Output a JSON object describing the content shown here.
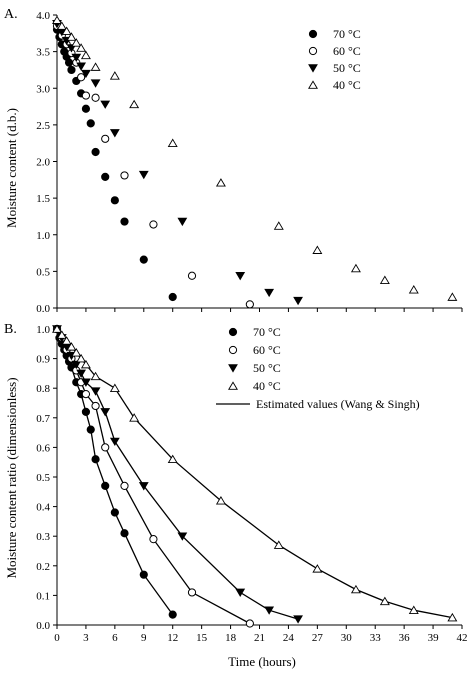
{
  "chart_data": [
    {
      "type": "scatter",
      "panel_label": "A.",
      "ylabel": "Moisture content (d.b.)",
      "xlabel": "",
      "xlim": [
        0,
        42
      ],
      "ylim": [
        0,
        4.0
      ],
      "x_ticks": [
        0,
        3,
        6,
        9,
        12,
        15,
        18,
        21,
        24,
        27,
        30,
        33,
        36,
        39,
        42
      ],
      "x_tick_labels_shown": false,
      "y_ticks": [
        0,
        0.5,
        1.0,
        1.5,
        2.0,
        2.5,
        3.0,
        3.5,
        4.0
      ],
      "y_tick_labels": [
        "0.0",
        "0.5",
        "1.0",
        "1.5",
        "2.0",
        "2.5",
        "3.0",
        "3.5",
        "4.0"
      ],
      "grid": false,
      "legend_position": "top-right",
      "series": [
        {
          "name": "70 °C",
          "marker": "filled-circle",
          "x": [
            0,
            0.25,
            0.5,
            0.75,
            1,
            1.25,
            1.5,
            2,
            2.5,
            3,
            3.5,
            4,
            5,
            6,
            7,
            9,
            12
          ],
          "y": [
            3.8,
            3.7,
            3.6,
            3.5,
            3.43,
            3.35,
            3.25,
            3.1,
            2.93,
            2.72,
            2.52,
            2.13,
            1.79,
            1.47,
            1.18,
            0.66,
            0.15
          ]
        },
        {
          "name": "60 °C",
          "marker": "open-circle",
          "x": [
            0,
            0.5,
            1,
            1.5,
            2,
            2.5,
            3,
            4,
            5,
            7,
            10,
            14,
            20
          ],
          "y": [
            3.85,
            3.72,
            3.6,
            3.48,
            3.35,
            3.15,
            2.9,
            2.87,
            2.31,
            1.81,
            1.14,
            0.44,
            0.05
          ]
        },
        {
          "name": "50 °C",
          "marker": "filled-triangle-down",
          "x": [
            0,
            0.5,
            1,
            1.5,
            2,
            2.5,
            3,
            4,
            5,
            6,
            9,
            13,
            19,
            22,
            25
          ],
          "y": [
            3.88,
            3.77,
            3.65,
            3.55,
            3.42,
            3.3,
            3.2,
            3.07,
            2.78,
            2.39,
            1.82,
            1.18,
            0.44,
            0.21,
            0.1
          ]
        },
        {
          "name": "40 °C",
          "marker": "open-triangle-up",
          "x": [
            0,
            0.5,
            1,
            1.5,
            2,
            2.5,
            3,
            4,
            6,
            8,
            12,
            17,
            23,
            27,
            31,
            34,
            37,
            41
          ],
          "y": [
            3.93,
            3.85,
            3.78,
            3.7,
            3.62,
            3.55,
            3.45,
            3.29,
            3.17,
            2.78,
            2.25,
            1.71,
            1.12,
            0.79,
            0.54,
            0.38,
            0.25,
            0.15
          ]
        }
      ]
    },
    {
      "type": "scatter",
      "panel_label": "B.",
      "ylabel": "Moisture content ratio (dimensionless)",
      "xlabel": "Time (hours)",
      "xlim": [
        0,
        42
      ],
      "ylim": [
        0,
        1.0
      ],
      "x_ticks": [
        0,
        3,
        6,
        9,
        12,
        15,
        18,
        21,
        24,
        27,
        30,
        33,
        36,
        39,
        42
      ],
      "x_tick_labels": [
        "0",
        "3",
        "6",
        "9",
        "12",
        "15",
        "18",
        "21",
        "24",
        "27",
        "30",
        "33",
        "36",
        "39",
        "42"
      ],
      "y_ticks": [
        0,
        0.1,
        0.2,
        0.3,
        0.4,
        0.5,
        0.6,
        0.7,
        0.8,
        0.9,
        1.0
      ],
      "y_tick_labels": [
        "0.0",
        "0.1",
        "0.2",
        "0.3",
        "0.4",
        "0.5",
        "0.6",
        "0.7",
        "0.8",
        "0.9",
        "1.0"
      ],
      "grid": false,
      "legend_position": "top-right",
      "series": [
        {
          "name": "70 °C",
          "marker": "filled-circle",
          "x": [
            0,
            0.25,
            0.5,
            0.75,
            1,
            1.25,
            1.5,
            2,
            2.5,
            3,
            3.5,
            4,
            5,
            6,
            7,
            9,
            12
          ],
          "y": [
            1.0,
            0.97,
            0.95,
            0.93,
            0.91,
            0.89,
            0.87,
            0.82,
            0.78,
            0.72,
            0.66,
            0.56,
            0.47,
            0.38,
            0.31,
            0.17,
            0.035
          ]
        },
        {
          "name": "60 °C",
          "marker": "open-circle",
          "x": [
            0,
            0.5,
            1,
            1.5,
            2,
            2.5,
            3,
            4,
            5,
            7,
            10,
            14,
            20
          ],
          "y": [
            1.0,
            0.97,
            0.93,
            0.9,
            0.86,
            0.82,
            0.78,
            0.74,
            0.6,
            0.47,
            0.29,
            0.11,
            0.005
          ]
        },
        {
          "name": "50 °C",
          "marker": "filled-triangle-down",
          "x": [
            0,
            0.5,
            1,
            1.5,
            2,
            2.5,
            3,
            4,
            5,
            6,
            9,
            13,
            19,
            22,
            25
          ],
          "y": [
            1.0,
            0.97,
            0.94,
            0.91,
            0.88,
            0.85,
            0.82,
            0.79,
            0.72,
            0.62,
            0.47,
            0.3,
            0.11,
            0.05,
            0.02
          ]
        },
        {
          "name": "40 °C",
          "marker": "open-triangle-up",
          "x": [
            0,
            0.5,
            1,
            1.5,
            2,
            2.5,
            3,
            4,
            6,
            8,
            12,
            17,
            23,
            27,
            31,
            34,
            37,
            41
          ],
          "y": [
            1.0,
            0.98,
            0.96,
            0.94,
            0.92,
            0.9,
            0.88,
            0.84,
            0.8,
            0.7,
            0.56,
            0.42,
            0.27,
            0.19,
            0.12,
            0.08,
            0.05,
            0.025
          ]
        },
        {
          "name": "Estimated values (Wang & Singh)",
          "marker": "line",
          "x": [],
          "y": []
        }
      ]
    }
  ]
}
